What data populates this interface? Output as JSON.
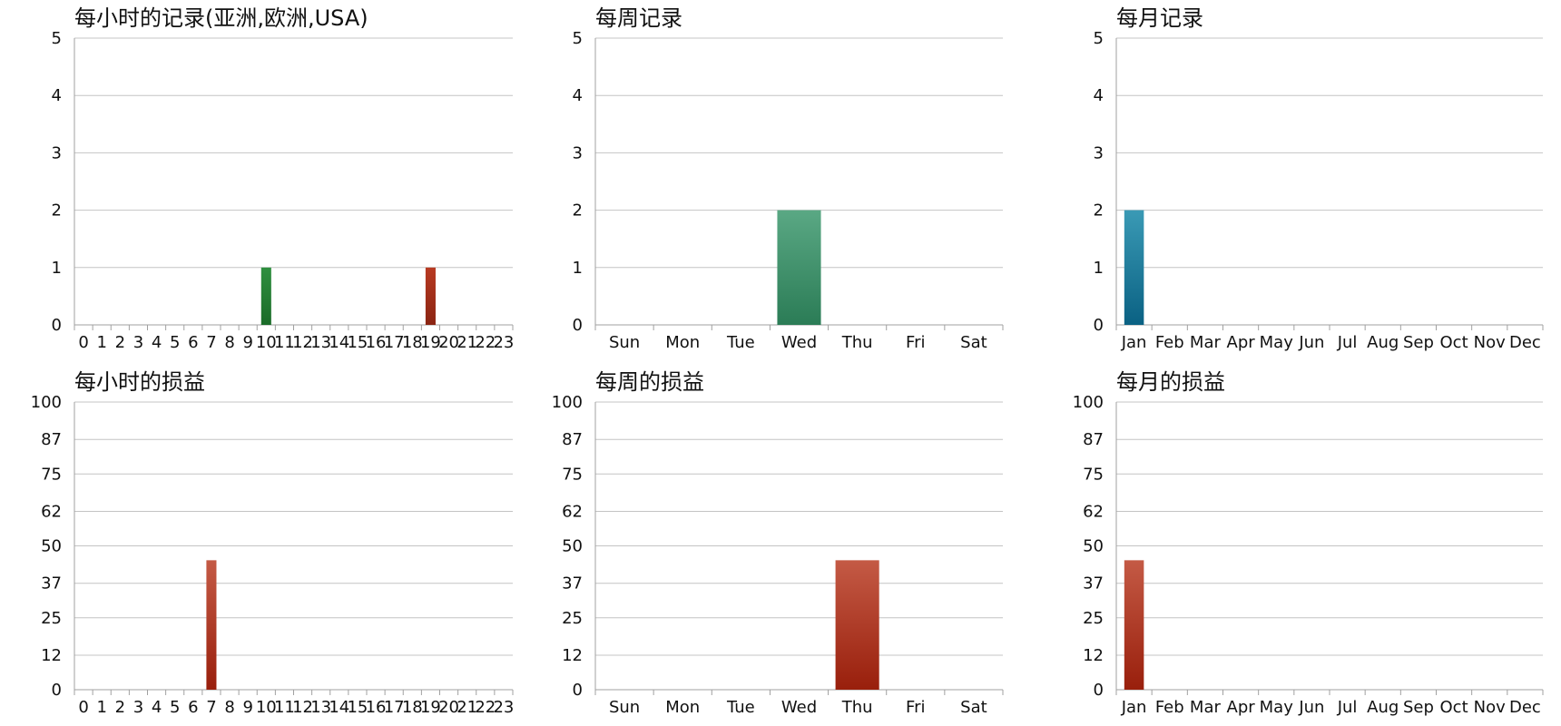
{
  "charts": [
    {
      "title": "每小时的记录(亚洲,欧洲,USA)",
      "chart_data": {
        "type": "bar",
        "categories": [
          "0",
          "1",
          "2",
          "3",
          "4",
          "5",
          "6",
          "7",
          "8",
          "9",
          "10",
          "11",
          "12",
          "13",
          "14",
          "15",
          "16",
          "17",
          "18",
          "19",
          "20",
          "21",
          "22",
          "23"
        ],
        "values": [
          0,
          0,
          0,
          0,
          0,
          0,
          0,
          0,
          0,
          0,
          1,
          0,
          0,
          0,
          0,
          0,
          0,
          0,
          0,
          1,
          0,
          0,
          0,
          0
        ],
        "ylim": [
          0,
          5
        ],
        "yticks": [
          0,
          1,
          2,
          3,
          4,
          5
        ],
        "grid": true
      },
      "bar_colors": {
        "10": [
          "#2f8f3f",
          "#1a6b28"
        ],
        "19": [
          "#b83a22",
          "#8a2412"
        ]
      }
    },
    {
      "title": "每周记录",
      "chart_data": {
        "type": "bar",
        "categories": [
          "Sun",
          "Mon",
          "Tue",
          "Wed",
          "Thu",
          "Fri",
          "Sat"
        ],
        "values": [
          0,
          0,
          0,
          2,
          0,
          0,
          0
        ],
        "ylim": [
          0,
          5
        ],
        "yticks": [
          0,
          1,
          2,
          3,
          4,
          5
        ],
        "grid": true
      },
      "bar_colors": {
        "default": [
          "#5aa884",
          "#2b7c56"
        ]
      }
    },
    {
      "title": "每月记录",
      "chart_data": {
        "type": "bar",
        "categories": [
          "Jan",
          "Feb",
          "Mar",
          "Apr",
          "May",
          "Jun",
          "Jul",
          "Aug",
          "Sep",
          "Oct",
          "Nov",
          "Dec"
        ],
        "values": [
          2,
          0,
          0,
          0,
          0,
          0,
          0,
          0,
          0,
          0,
          0,
          0
        ],
        "ylim": [
          0,
          5
        ],
        "yticks": [
          0,
          1,
          2,
          3,
          4,
          5
        ],
        "grid": true
      },
      "bar_colors": {
        "default": [
          "#3a9ab5",
          "#0a6183"
        ]
      }
    },
    {
      "title": "每小时的损益",
      "chart_data": {
        "type": "bar",
        "categories": [
          "0",
          "1",
          "2",
          "3",
          "4",
          "5",
          "6",
          "7",
          "8",
          "9",
          "10",
          "11",
          "12",
          "13",
          "14",
          "15",
          "16",
          "17",
          "18",
          "19",
          "20",
          "21",
          "22",
          "23"
        ],
        "values": [
          0,
          0,
          0,
          0,
          0,
          0,
          0,
          45,
          0,
          0,
          0,
          0,
          0,
          0,
          0,
          0,
          0,
          0,
          0,
          0,
          0,
          0,
          0,
          0
        ],
        "ylim": [
          0,
          100
        ],
        "yticks": [
          0,
          12,
          25,
          37,
          50,
          62,
          75,
          87,
          100
        ],
        "grid": true
      },
      "bar_colors": {
        "default": [
          "#c45a45",
          "#991f0c"
        ]
      }
    },
    {
      "title": "每周的损益",
      "chart_data": {
        "type": "bar",
        "categories": [
          "Sun",
          "Mon",
          "Tue",
          "Wed",
          "Thu",
          "Fri",
          "Sat"
        ],
        "values": [
          0,
          0,
          0,
          0,
          45,
          0,
          0
        ],
        "ylim": [
          0,
          100
        ],
        "yticks": [
          0,
          12,
          25,
          37,
          50,
          62,
          75,
          87,
          100
        ],
        "grid": true
      },
      "bar_colors": {
        "default": [
          "#c45a45",
          "#991f0c"
        ]
      }
    },
    {
      "title": "每月的损益",
      "chart_data": {
        "type": "bar",
        "categories": [
          "Jan",
          "Feb",
          "Mar",
          "Apr",
          "May",
          "Jun",
          "Jul",
          "Aug",
          "Sep",
          "Oct",
          "Nov",
          "Dec"
        ],
        "values": [
          45,
          0,
          0,
          0,
          0,
          0,
          0,
          0,
          0,
          0,
          0,
          0
        ],
        "ylim": [
          0,
          100
        ],
        "yticks": [
          0,
          12,
          25,
          37,
          50,
          62,
          75,
          87,
          100
        ],
        "grid": true
      },
      "bar_colors": {
        "default": [
          "#c45a45",
          "#991f0c"
        ]
      }
    }
  ]
}
